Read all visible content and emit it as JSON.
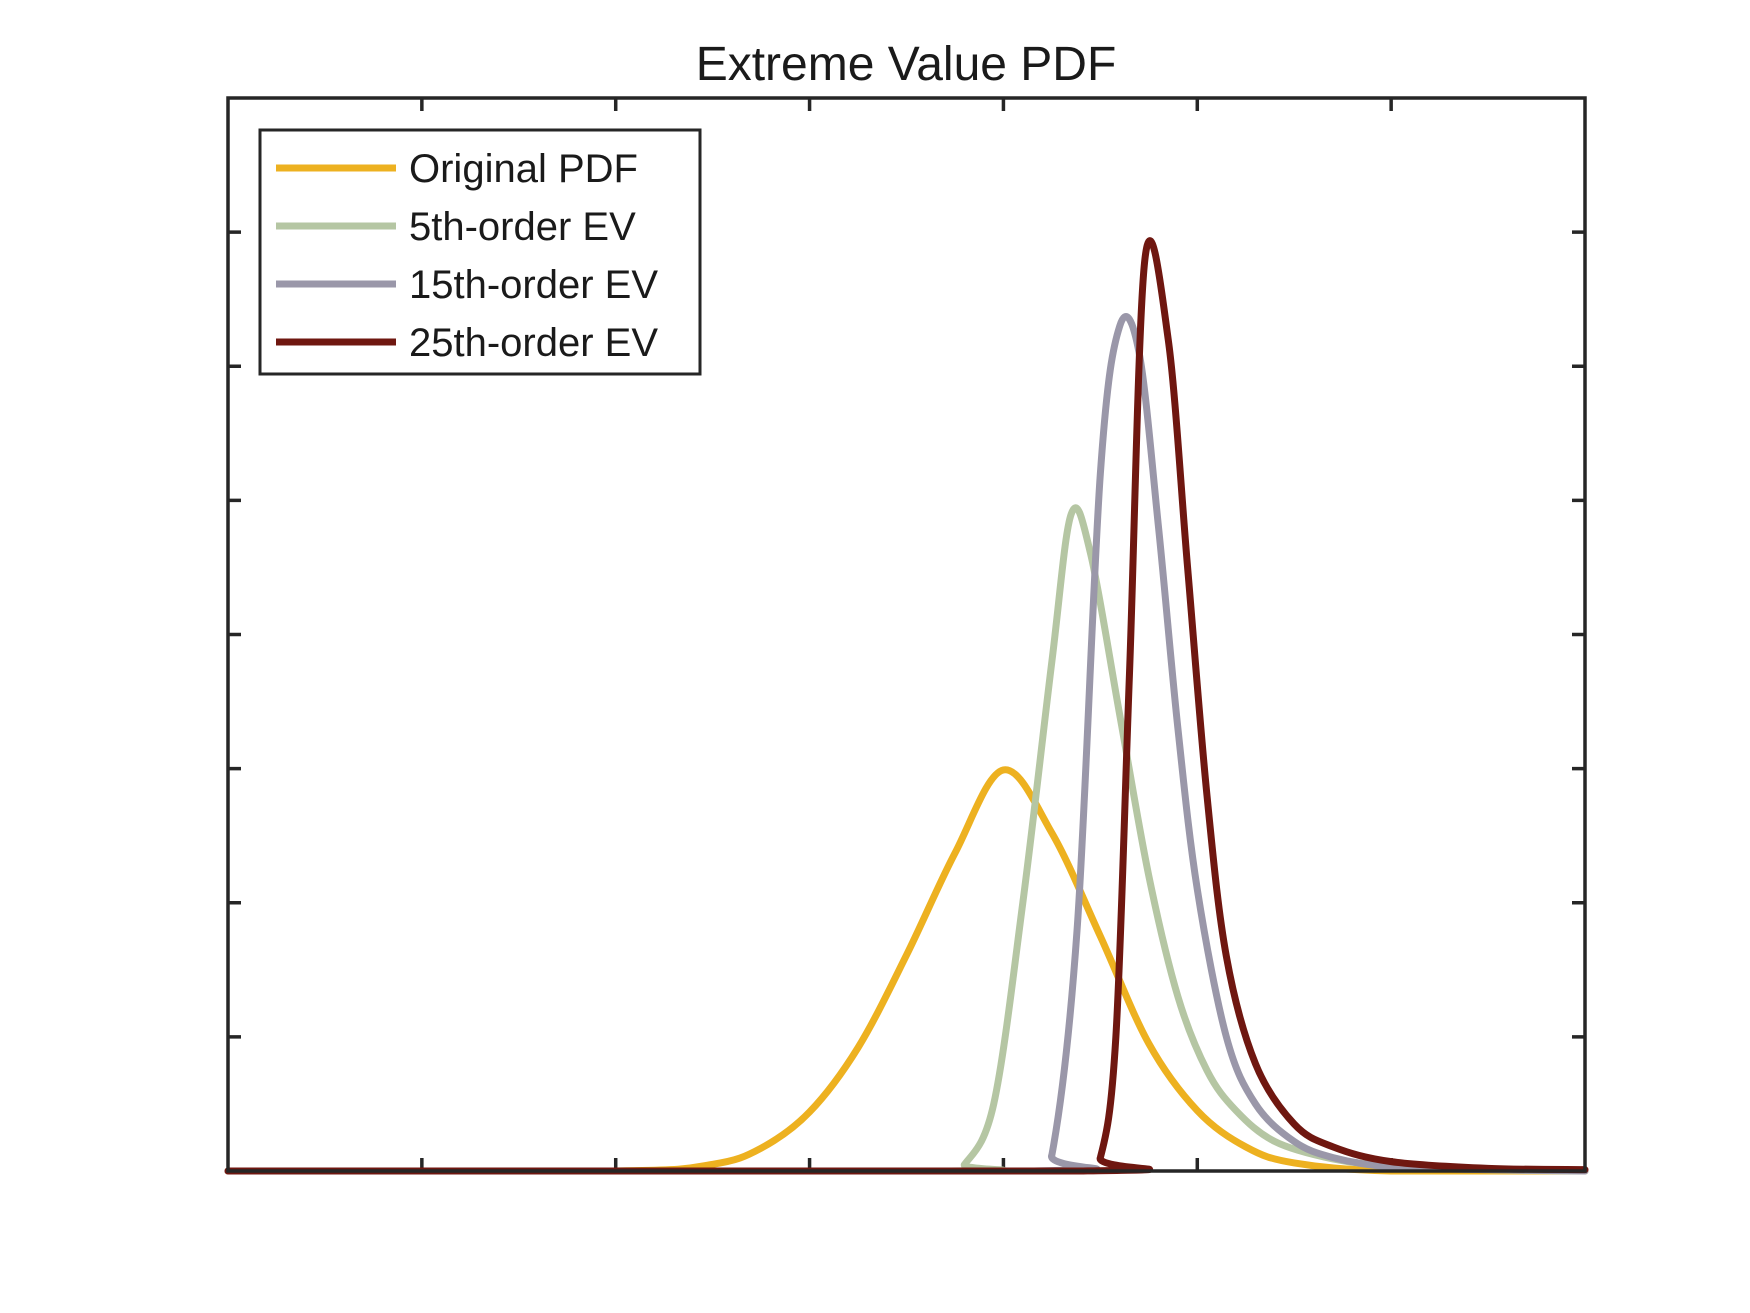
{
  "chart_data": {
    "type": "line",
    "title": "Extreme Value PDF",
    "xlabel": "",
    "ylabel": "",
    "xlim": [
      -6,
      1
    ],
    "ylim": [
      0,
      0.8
    ],
    "x_ticks": [
      -6,
      -5,
      -4,
      -3,
      -2,
      -1,
      0,
      1
    ],
    "y_ticks": [
      0,
      0.1,
      0.2,
      0.3,
      0.4,
      0.5,
      0.6,
      0.7,
      0.8
    ],
    "tick_labels_shown": false,
    "grid": false,
    "legend_position": "top-left",
    "series": [
      {
        "name": "Original PDF",
        "color": "#EDB120",
        "x": [
          -6.0,
          -4.0,
          -3.5,
          -3.25,
          -3.0,
          -2.75,
          -2.5,
          -2.25,
          -2.0,
          -1.75,
          -1.5,
          -1.25,
          -1.0,
          -0.75,
          -0.5,
          0.0,
          1.0
        ],
        "y": [
          0.0,
          0.0,
          0.005,
          0.017,
          0.044,
          0.092,
          0.161,
          0.237,
          0.299,
          0.252,
          0.175,
          0.095,
          0.045,
          0.018,
          0.006,
          0.0,
          0.0
        ]
      },
      {
        "name": "5th-order EV",
        "color": "#B5C6A3",
        "x": [
          -6.0,
          -2.3,
          -2.2,
          -2.05,
          -1.9,
          -1.75,
          -1.65,
          -1.55,
          -1.4,
          -1.25,
          -1.1,
          -0.95,
          -0.8,
          -0.6,
          -0.3,
          0.0,
          0.5,
          1.0
        ],
        "y": [
          0.0,
          0.0,
          0.005,
          0.05,
          0.2,
          0.38,
          0.49,
          0.46,
          0.34,
          0.22,
          0.13,
          0.075,
          0.045,
          0.022,
          0.009,
          0.004,
          0.001,
          0.0
        ]
      },
      {
        "name": "15th-order EV",
        "color": "#9A97A9",
        "x": [
          -6.0,
          -1.85,
          -1.75,
          -1.62,
          -1.5,
          -1.4,
          -1.3,
          -1.2,
          -1.1,
          -1.0,
          -0.85,
          -0.7,
          -0.5,
          -0.3,
          0.0,
          0.5,
          1.0
        ],
        "y": [
          0.0,
          0.0,
          0.012,
          0.18,
          0.52,
          0.63,
          0.61,
          0.48,
          0.33,
          0.21,
          0.1,
          0.05,
          0.022,
          0.01,
          0.003,
          0.001,
          0.0
        ]
      },
      {
        "name": "25th-order EV",
        "color": "#6F1710",
        "x": [
          -6.0,
          -1.6,
          -1.5,
          -1.42,
          -1.35,
          -1.27,
          -1.15,
          -1.05,
          -0.95,
          -0.85,
          -0.7,
          -0.5,
          -0.3,
          0.0,
          0.5,
          1.0
        ],
        "y": [
          0.0,
          0.0,
          0.01,
          0.1,
          0.37,
          0.68,
          0.62,
          0.45,
          0.28,
          0.16,
          0.08,
          0.035,
          0.018,
          0.007,
          0.002,
          0.001
        ]
      }
    ]
  }
}
